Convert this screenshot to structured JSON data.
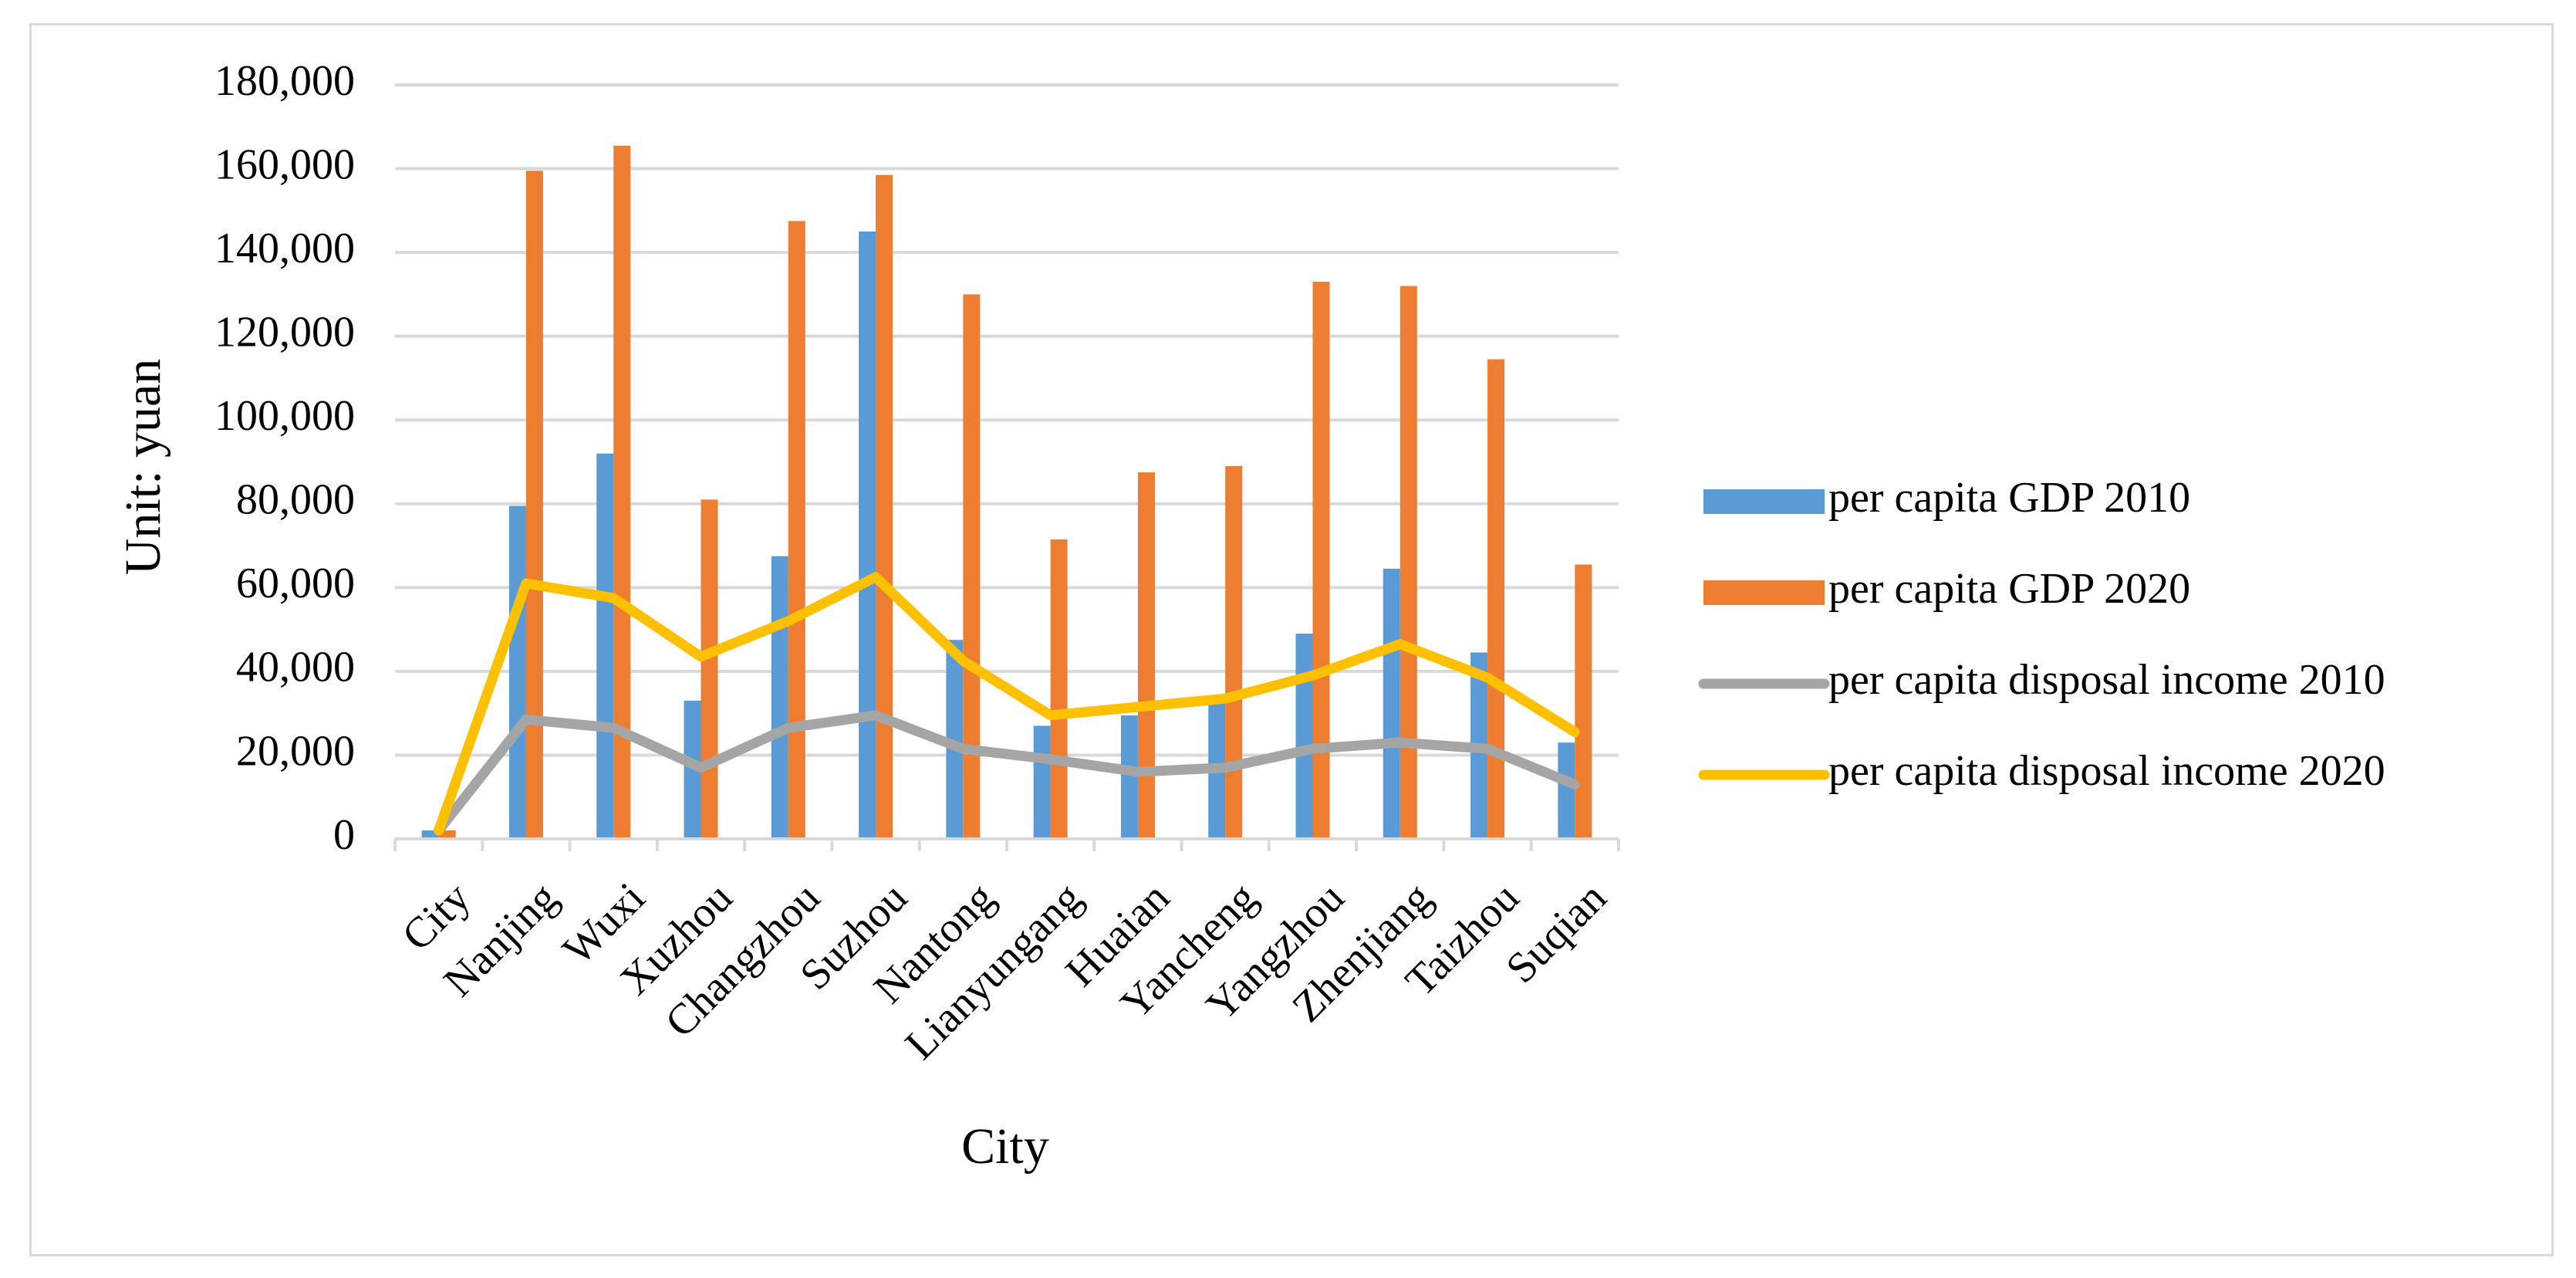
{
  "chart_data": {
    "type": "bar",
    "title": "",
    "xlabel": "City",
    "ylabel": "Unit: yuan",
    "ylim": [
      0,
      180000
    ],
    "yticks": [
      0,
      20000,
      40000,
      60000,
      80000,
      100000,
      120000,
      140000,
      160000,
      180000
    ],
    "grid": true,
    "legend_position": "right",
    "categories": [
      "City",
      "Nanjing",
      "Wuxi",
      "Xuzhou",
      "Changzhou",
      "Suzhou",
      "Nantong",
      "Lianyungang",
      "Huaian",
      "Yancheng",
      "Yangzhou",
      "Zhenjiang",
      "Taizhou",
      "Suqian"
    ],
    "series": [
      {
        "name": "per capita GDP  2010",
        "kind": "bar",
        "color": "#5b9bd5",
        "values": [
          2010,
          79500,
          92000,
          33000,
          67500,
          145000,
          47500,
          27000,
          29500,
          33000,
          49000,
          64500,
          44500,
          23000
        ]
      },
      {
        "name": "per capita GDP  2020",
        "kind": "bar",
        "color": "#ed7d31",
        "values": [
          2020,
          159500,
          165500,
          81000,
          147500,
          158500,
          130000,
          71500,
          87500,
          89000,
          133000,
          132000,
          114500,
          65500
        ]
      },
      {
        "name": "per capita disposal income 2010",
        "kind": "line",
        "color": "#a5a5a5",
        "values": [
          2010,
          28500,
          26500,
          17000,
          26500,
          29500,
          21500,
          19000,
          16000,
          17000,
          21500,
          23000,
          21500,
          13000
        ]
      },
      {
        "name": "per capita disposal income 2020",
        "kind": "line",
        "color": "#ffc000",
        "values": [
          2020,
          61000,
          57500,
          43500,
          52000,
          62500,
          42500,
          29500,
          31500,
          33500,
          39000,
          46500,
          38500,
          25500
        ]
      }
    ]
  }
}
